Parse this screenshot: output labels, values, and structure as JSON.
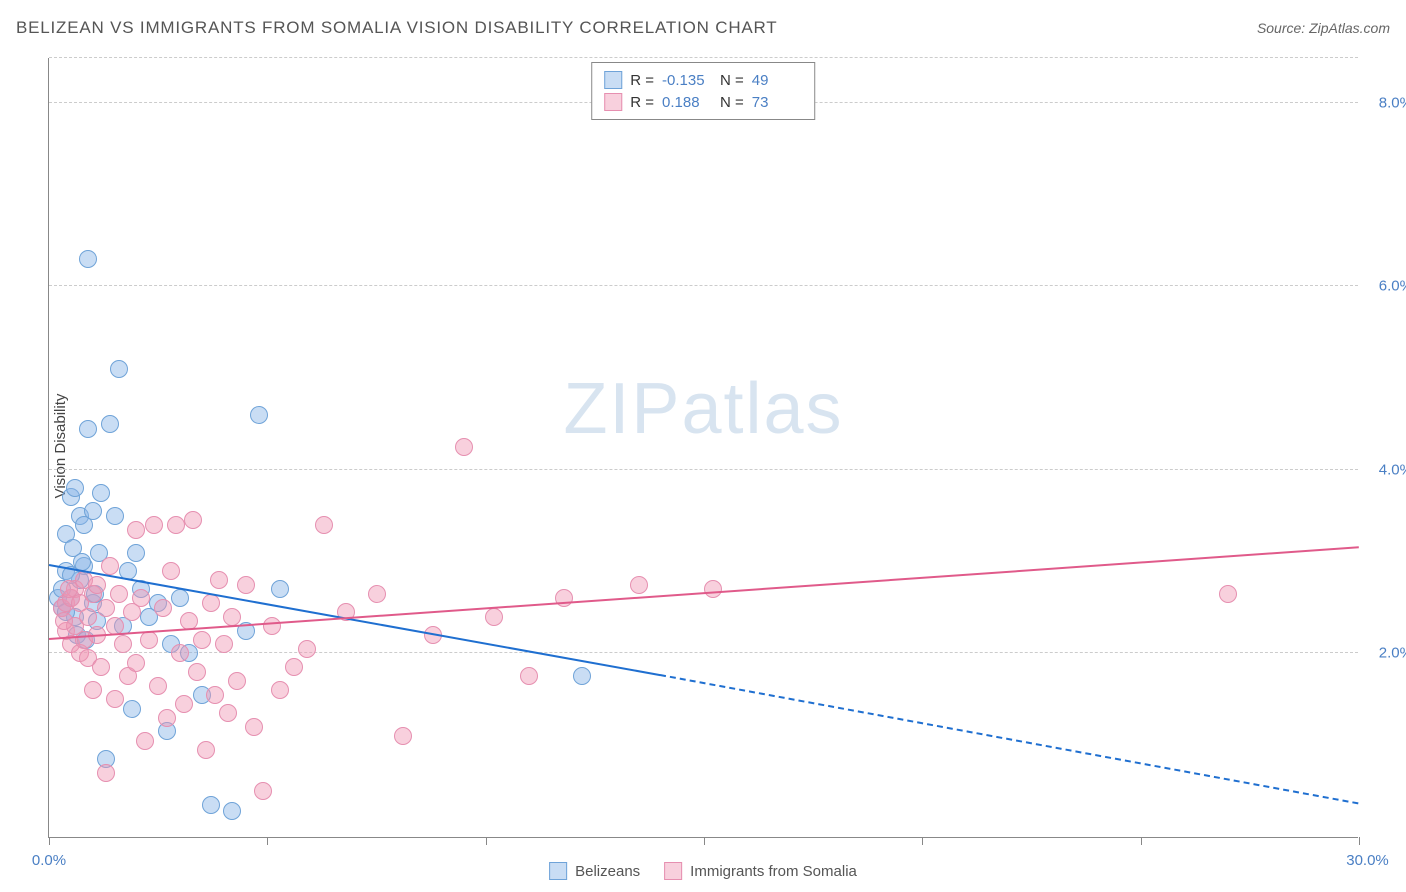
{
  "header": {
    "title": "BELIZEAN VS IMMIGRANTS FROM SOMALIA VISION DISABILITY CORRELATION CHART",
    "source": "Source: ZipAtlas.com"
  },
  "chart": {
    "type": "scatter",
    "ylabel": "Vision Disability",
    "watermark_zip": "ZIP",
    "watermark_atlas": "atlas",
    "background_color": "#ffffff",
    "grid_color": "#cccccc",
    "axis_color": "#888888",
    "xlim": [
      0,
      30
    ],
    "ylim": [
      0,
      8.5
    ],
    "ytick_labels": [
      "2.0%",
      "4.0%",
      "6.0%",
      "8.0%"
    ],
    "ytick_values": [
      2.0,
      4.0,
      6.0,
      8.0
    ],
    "xtick_left": "0.0%",
    "xtick_right": "30.0%",
    "xtick_marks": [
      0,
      5,
      10,
      15,
      20,
      25,
      30
    ],
    "marker_radius": 9,
    "marker_border_width": 1.5,
    "series": [
      {
        "name": "Belizeans",
        "label": "Belizeans",
        "fill_color": "rgba(135,180,230,0.45)",
        "border_color": "#6fa3d8",
        "line_color": "#1f6fd0",
        "R": "-0.135",
        "N": "49",
        "regression": {
          "x1": 0,
          "y1": 2.95,
          "x2": 14,
          "y2": 1.75,
          "dash_x2": 30,
          "dash_y2": 0.35
        },
        "points": [
          [
            0.2,
            2.6
          ],
          [
            0.3,
            2.7
          ],
          [
            0.3,
            2.5
          ],
          [
            0.4,
            2.9
          ],
          [
            0.4,
            3.3
          ],
          [
            0.5,
            2.6
          ],
          [
            0.5,
            3.7
          ],
          [
            0.6,
            3.8
          ],
          [
            0.6,
            2.4
          ],
          [
            0.7,
            3.5
          ],
          [
            0.7,
            2.8
          ],
          [
            0.8,
            3.4
          ],
          [
            0.8,
            2.95
          ],
          [
            0.9,
            6.3
          ],
          [
            0.9,
            4.45
          ],
          [
            1.0,
            2.55
          ],
          [
            1.0,
            3.55
          ],
          [
            1.1,
            2.35
          ],
          [
            1.2,
            3.75
          ],
          [
            1.3,
            0.85
          ],
          [
            1.4,
            4.5
          ],
          [
            1.5,
            3.5
          ],
          [
            1.6,
            5.1
          ],
          [
            1.7,
            2.3
          ],
          [
            1.8,
            2.9
          ],
          [
            1.9,
            1.4
          ],
          [
            2.0,
            3.1
          ],
          [
            2.1,
            2.7
          ],
          [
            2.3,
            2.4
          ],
          [
            2.5,
            2.55
          ],
          [
            2.7,
            1.15
          ],
          [
            2.8,
            2.1
          ],
          [
            3.0,
            2.6
          ],
          [
            3.2,
            2.0
          ],
          [
            3.5,
            1.55
          ],
          [
            3.7,
            0.35
          ],
          [
            4.2,
            0.28
          ],
          [
            4.5,
            2.25
          ],
          [
            4.8,
            4.6
          ],
          [
            5.3,
            2.7
          ],
          [
            0.4,
            2.45
          ],
          [
            0.5,
            2.85
          ],
          [
            0.55,
            3.15
          ],
          [
            0.65,
            2.2
          ],
          [
            0.75,
            3.0
          ],
          [
            0.85,
            2.15
          ],
          [
            1.05,
            2.65
          ],
          [
            1.15,
            3.1
          ],
          [
            12.2,
            1.75
          ]
        ]
      },
      {
        "name": "Immigrants from Somalia",
        "label": "Immigrants from Somalia",
        "fill_color": "rgba(240,150,180,0.45)",
        "border_color": "#e68fb0",
        "line_color": "#e05a8a",
        "R": "0.188",
        "N": "73",
        "regression": {
          "x1": 0,
          "y1": 2.15,
          "x2": 30,
          "y2": 3.15
        },
        "points": [
          [
            0.3,
            2.5
          ],
          [
            0.4,
            2.55
          ],
          [
            0.4,
            2.25
          ],
          [
            0.5,
            2.6
          ],
          [
            0.5,
            2.1
          ],
          [
            0.6,
            2.7
          ],
          [
            0.6,
            2.3
          ],
          [
            0.7,
            2.0
          ],
          [
            0.7,
            2.55
          ],
          [
            0.8,
            2.8
          ],
          [
            0.8,
            2.15
          ],
          [
            0.9,
            1.95
          ],
          [
            0.9,
            2.4
          ],
          [
            1.0,
            2.65
          ],
          [
            1.0,
            1.6
          ],
          [
            1.1,
            2.2
          ],
          [
            1.1,
            2.75
          ],
          [
            1.2,
            1.85
          ],
          [
            1.3,
            2.5
          ],
          [
            1.3,
            0.7
          ],
          [
            1.4,
            2.95
          ],
          [
            1.5,
            2.3
          ],
          [
            1.5,
            1.5
          ],
          [
            1.6,
            2.65
          ],
          [
            1.7,
            2.1
          ],
          [
            1.8,
            1.75
          ],
          [
            1.9,
            2.45
          ],
          [
            2.0,
            3.35
          ],
          [
            2.0,
            1.9
          ],
          [
            2.1,
            2.6
          ],
          [
            2.2,
            1.05
          ],
          [
            2.3,
            2.15
          ],
          [
            2.4,
            3.4
          ],
          [
            2.5,
            1.65
          ],
          [
            2.6,
            2.5
          ],
          [
            2.7,
            1.3
          ],
          [
            2.8,
            2.9
          ],
          [
            2.9,
            3.4
          ],
          [
            3.0,
            2.0
          ],
          [
            3.1,
            1.45
          ],
          [
            3.2,
            2.35
          ],
          [
            3.3,
            3.45
          ],
          [
            3.4,
            1.8
          ],
          [
            3.5,
            2.15
          ],
          [
            3.6,
            0.95
          ],
          [
            3.7,
            2.55
          ],
          [
            3.8,
            1.55
          ],
          [
            3.9,
            2.8
          ],
          [
            4.0,
            2.1
          ],
          [
            4.1,
            1.35
          ],
          [
            4.2,
            2.4
          ],
          [
            4.3,
            1.7
          ],
          [
            4.5,
            2.75
          ],
          [
            4.7,
            1.2
          ],
          [
            4.9,
            0.5
          ],
          [
            5.1,
            2.3
          ],
          [
            5.3,
            1.6
          ],
          [
            5.6,
            1.85
          ],
          [
            5.9,
            2.05
          ],
          [
            6.3,
            3.4
          ],
          [
            6.8,
            2.45
          ],
          [
            7.5,
            2.65
          ],
          [
            8.1,
            1.1
          ],
          [
            8.8,
            2.2
          ],
          [
            9.5,
            4.25
          ],
          [
            10.2,
            2.4
          ],
          [
            11.0,
            1.75
          ],
          [
            11.8,
            2.6
          ],
          [
            13.5,
            2.75
          ],
          [
            15.2,
            2.7
          ],
          [
            27.0,
            2.65
          ],
          [
            0.35,
            2.35
          ],
          [
            0.45,
            2.7
          ]
        ]
      }
    ],
    "legend_top": {
      "r_label": "R =",
      "n_label": "N ="
    }
  }
}
